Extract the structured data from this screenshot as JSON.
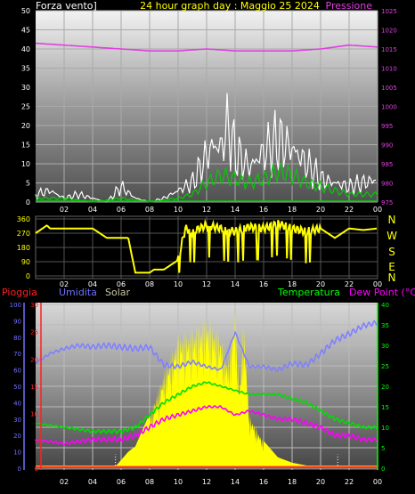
{
  "chart_data": [
    {
      "type": "line",
      "title": "24 hour graph day : Maggio 25 2024",
      "left_axis_label": "Forza vento]",
      "right_axis_label": "Pressione",
      "x_ticks": [
        "02",
        "04",
        "06",
        "08",
        "10",
        "12",
        "14",
        "16",
        "18",
        "20",
        "22",
        "00"
      ],
      "y_left_ticks": [
        "0",
        "5",
        "10",
        "15",
        "20",
        "25",
        "30",
        "35",
        "40",
        "45",
        "50"
      ],
      "ylim_left": [
        0,
        50
      ],
      "y_right_ticks": [
        "975",
        "980",
        "985",
        "990",
        "995",
        "1000",
        "1005",
        "1010",
        "1015",
        "1020",
        "1025"
      ],
      "ylim_right": [
        975,
        1025
      ],
      "grid": true,
      "series": [
        {
          "name": "Pressione",
          "color": "#e040e0",
          "hours": [
            0,
            2,
            4,
            6,
            8,
            10,
            12,
            14,
            16,
            18,
            20,
            22,
            24
          ],
          "values": [
            1016.5,
            1016,
            1015.5,
            1015,
            1014.5,
            1014.5,
            1015,
            1014.5,
            1014.5,
            1014.5,
            1015,
            1016,
            1015.5
          ]
        },
        {
          "color": "#ffffff",
          "hours": [
            0,
            1,
            2,
            3,
            4,
            5,
            6,
            7,
            8,
            9,
            10,
            11,
            12,
            12.5,
            13,
            13.5,
            14,
            14.5,
            15,
            16,
            17,
            18,
            18.5,
            19,
            20,
            21,
            22,
            23,
            24
          ],
          "values": [
            2,
            3,
            1,
            2,
            1,
            0,
            4,
            1,
            0,
            1,
            3,
            5,
            12,
            15,
            14,
            20,
            13,
            11,
            9,
            13,
            16,
            14,
            12,
            10,
            6,
            5,
            4,
            5,
            6
          ]
        },
        {
          "color": "#00cc00",
          "hours": [
            0,
            2,
            4,
            6,
            8,
            10,
            11,
            12,
            13,
            14,
            15,
            16,
            17,
            18,
            19,
            20,
            21,
            22,
            23,
            24
          ],
          "values": [
            1,
            1,
            0,
            1,
            0,
            1,
            2,
            5,
            7,
            6,
            5,
            6,
            8,
            7,
            5,
            4,
            3,
            2,
            2,
            2
          ]
        }
      ]
    },
    {
      "type": "line",
      "y_ticks": [
        "0",
        "90",
        "180",
        "270",
        "360"
      ],
      "ylim": [
        0,
        360
      ],
      "direction_labels": [
        "N",
        "W",
        "S",
        "E",
        "N"
      ],
      "series": [
        {
          "color": "#ffff00",
          "hours": [
            0,
            0.8,
            1,
            3,
            4,
            5,
            6,
            6.5,
            7,
            8,
            8.3,
            9,
            10,
            10.5,
            11,
            12,
            13,
            14,
            15,
            16,
            17,
            18,
            19,
            20,
            21,
            22,
            23,
            24
          ],
          "values": [
            270,
            320,
            300,
            300,
            300,
            240,
            240,
            240,
            20,
            20,
            40,
            40,
            100,
            300,
            280,
            320,
            300,
            280,
            310,
            300,
            330,
            300,
            280,
            300,
            240,
            300,
            290,
            300
          ]
        }
      ]
    },
    {
      "type": "area",
      "legend": [
        "Pioggia",
        "Umidita",
        "Solar",
        "Temperatura",
        "Dew Point (°C)"
      ],
      "legend_colors": [
        "#ff2020",
        "#7070ff",
        "#c8c8a0",
        "#00ff00",
        "#ff00ff"
      ],
      "y_left_ticks": [
        "0",
        "10",
        "20",
        "30",
        "40",
        "50",
        "60",
        "70",
        "80",
        "90",
        "100"
      ],
      "ylim_humidity": [
        0,
        100
      ],
      "y_left2_ticks": [
        "0",
        "5",
        "10",
        "15",
        "20",
        "25",
        "30"
      ],
      "ylim_rain": [
        0,
        30
      ],
      "y_right_ticks": [
        "0",
        "5",
        "10",
        "15",
        "20",
        "25",
        "30",
        "35",
        "40"
      ],
      "ylim_temp": [
        0,
        40
      ],
      "series": [
        {
          "name": "Umidita",
          "color": "#8080ff",
          "hours": [
            0,
            1,
            2,
            3,
            4,
            5,
            6,
            7,
            8,
            9,
            10,
            11,
            12,
            13,
            14,
            15,
            16,
            17,
            18,
            19,
            20,
            21,
            22,
            23,
            24
          ],
          "values": [
            64,
            70,
            73,
            75,
            74,
            75,
            74,
            73,
            74,
            63,
            62,
            65,
            62,
            60,
            83,
            62,
            62,
            60,
            64,
            63,
            70,
            78,
            82,
            87,
            89
          ]
        },
        {
          "name": "Temperatura",
          "color": "#00dd00",
          "hours": [
            0,
            2,
            4,
            6,
            7,
            8,
            9,
            10,
            11,
            12,
            13,
            14,
            15,
            16,
            17,
            18,
            19,
            20,
            21,
            22,
            23,
            24
          ],
          "values": [
            11,
            10,
            9,
            9,
            10,
            13,
            16,
            18,
            20,
            21,
            20,
            19,
            18,
            18,
            18,
            17,
            16,
            14,
            12,
            11,
            10,
            10
          ]
        },
        {
          "name": "Dew Point (°C)",
          "color": "#ff00ff",
          "hours": [
            0,
            2,
            4,
            6,
            7,
            8,
            9,
            10,
            11,
            12,
            13,
            14,
            15,
            16,
            17,
            18,
            19,
            20,
            21,
            22,
            23,
            24
          ],
          "values": [
            7,
            6,
            7,
            7,
            8,
            10,
            12,
            13,
            14,
            15,
            15,
            13,
            14,
            13,
            12,
            12,
            11,
            10,
            8,
            8,
            7,
            7
          ]
        },
        {
          "name": "Solar",
          "color": "#ffff00",
          "hours": [
            0,
            5.5,
            6.5,
            7,
            8,
            9,
            10,
            11,
            12,
            13,
            13.5,
            14,
            14.3,
            14.6,
            15,
            16,
            17,
            18,
            19,
            20,
            21,
            22,
            24
          ],
          "values": [
            0,
            0,
            3,
            4,
            10,
            18,
            25,
            26,
            28,
            25,
            20,
            30,
            15,
            28,
            10,
            5,
            2,
            1,
            0.5,
            0,
            0,
            0,
            0
          ]
        },
        {
          "name": "Pioggia",
          "color": "#ff3030",
          "hours": [
            0,
            24
          ],
          "values": [
            0,
            0
          ]
        }
      ],
      "dotted_markers_hours": [
        5.6,
        21.2
      ]
    }
  ]
}
